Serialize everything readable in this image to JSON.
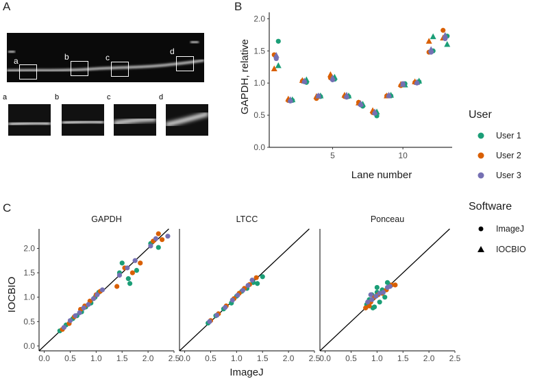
{
  "panels": {
    "a_letter": "A",
    "b_letter": "B",
    "c_letter": "C"
  },
  "blot": {
    "boxes": [
      "a",
      "b",
      "c",
      "d"
    ]
  },
  "colors": {
    "user1": "#1b9e77",
    "user2": "#d95f02",
    "user3": "#7570b3",
    "line": "#000000"
  },
  "chart_data": [
    {
      "type": "scatter",
      "panel": "B",
      "title": "",
      "xlabel": "Lane number",
      "ylabel": "GAPDH, relative",
      "xlim": [
        0.5,
        13.5
      ],
      "ylim": [
        0,
        2.1
      ],
      "xticks": [
        5,
        10
      ],
      "yticks": [
        0.0,
        0.5,
        1.0,
        1.5,
        2.0
      ],
      "ytick_labels": [
        "0.0",
        "0.5",
        "1.0",
        "1.5",
        "2.0"
      ],
      "grid": false,
      "series": [
        {
          "name": "User 1",
          "software": "ImageJ",
          "x": [
            1,
            2,
            3,
            4,
            5,
            6,
            7,
            8,
            9,
            10,
            11,
            12,
            13
          ],
          "y": [
            1.65,
            0.73,
            1.01,
            0.79,
            1.06,
            0.79,
            0.64,
            0.49,
            0.8,
            0.99,
            1.02,
            1.5,
            1.73
          ]
        },
        {
          "name": "User 1",
          "software": "IOCBIO",
          "x": [
            1,
            2,
            3,
            4,
            5,
            6,
            7,
            8,
            9,
            10,
            11,
            12,
            13
          ],
          "y": [
            1.27,
            0.74,
            1.05,
            0.8,
            1.09,
            0.8,
            0.67,
            0.55,
            0.81,
            0.97,
            1.03,
            1.72,
            1.6
          ]
        },
        {
          "name": "User 2",
          "software": "ImageJ",
          "x": [
            1,
            2,
            3,
            4,
            5,
            6,
            7,
            8,
            9,
            10,
            11,
            12,
            13
          ],
          "y": [
            1.44,
            0.73,
            1.03,
            0.76,
            1.08,
            0.79,
            0.7,
            0.54,
            0.8,
            0.96,
            1.01,
            1.48,
            1.82
          ]
        },
        {
          "name": "User 2",
          "software": "IOCBIO",
          "x": [
            1,
            2,
            3,
            4,
            5,
            6,
            7,
            8,
            9,
            10,
            11,
            12,
            13
          ],
          "y": [
            1.22,
            0.75,
            1.04,
            0.79,
            1.13,
            0.81,
            0.69,
            0.57,
            0.8,
            0.98,
            1.02,
            1.65,
            1.7
          ]
        },
        {
          "name": "User 3",
          "software": "ImageJ",
          "x": [
            1,
            2,
            3,
            4,
            5,
            6,
            7,
            8,
            9,
            10,
            11,
            12,
            13
          ],
          "y": [
            1.38,
            0.72,
            1.02,
            0.8,
            1.05,
            0.78,
            0.66,
            0.53,
            0.8,
            0.99,
            1.0,
            1.48,
            1.69
          ]
        },
        {
          "name": "User 3",
          "software": "IOCBIO",
          "x": [
            1,
            2,
            3,
            4,
            5,
            6,
            7,
            8,
            9,
            10,
            11,
            12,
            13
          ],
          "y": [
            1.43,
            0.74,
            1.03,
            0.8,
            1.08,
            0.81,
            0.68,
            0.55,
            0.81,
            0.98,
            1.01,
            1.52,
            1.74
          ]
        }
      ]
    },
    {
      "type": "scatter",
      "panel": "C",
      "title": "",
      "xlabel": "ImageJ",
      "ylabel": "IOCBIO",
      "xlim": [
        -0.1,
        2.5
      ],
      "ylim": [
        -0.1,
        2.4
      ],
      "xticks": [
        0.0,
        0.5,
        1.0,
        1.5,
        2.0,
        2.5
      ],
      "xtick_labels": [
        "0.0",
        "0.5",
        "1.0",
        "1.5",
        "2.0",
        "2.5"
      ],
      "yticks": [
        0.0,
        0.5,
        1.0,
        1.5,
        2.0
      ],
      "ytick_labels": [
        "0.0",
        "0.5",
        "1.0",
        "1.5",
        "2.0"
      ],
      "identity_line": true,
      "facets": [
        {
          "name": "GAPDH",
          "series": [
            {
              "name": "User 1",
              "points": [
                [
                  0.3,
                  0.31
                ],
                [
                  0.42,
                  0.43
                ],
                [
                  0.55,
                  0.56
                ],
                [
                  0.63,
                  0.62
                ],
                [
                  0.72,
                  0.7
                ],
                [
                  0.8,
                  0.8
                ],
                [
                  0.9,
                  0.88
                ],
                [
                  0.98,
                  1.0
                ],
                [
                  1.05,
                  1.1
                ],
                [
                  1.45,
                  1.5
                ],
                [
                  1.5,
                  1.7
                ],
                [
                  1.62,
                  1.38
                ],
                [
                  1.65,
                  1.28
                ],
                [
                  1.78,
                  1.55
                ],
                [
                  2.05,
                  2.1
                ],
                [
                  2.2,
                  2.02
                ]
              ]
            },
            {
              "name": "User 2",
              "points": [
                [
                  0.35,
                  0.34
                ],
                [
                  0.48,
                  0.46
                ],
                [
                  0.58,
                  0.6
                ],
                [
                  0.7,
                  0.75
                ],
                [
                  0.78,
                  0.82
                ],
                [
                  0.88,
                  0.92
                ],
                [
                  1.0,
                  1.05
                ],
                [
                  1.08,
                  1.12
                ],
                [
                  1.4,
                  1.22
                ],
                [
                  1.55,
                  1.6
                ],
                [
                  1.7,
                  1.5
                ],
                [
                  1.85,
                  1.7
                ],
                [
                  2.1,
                  2.15
                ],
                [
                  2.2,
                  2.3
                ],
                [
                  2.27,
                  2.18
                ]
              ]
            },
            {
              "name": "User 3",
              "points": [
                [
                  0.38,
                  0.38
                ],
                [
                  0.5,
                  0.52
                ],
                [
                  0.6,
                  0.62
                ],
                [
                  0.68,
                  0.68
                ],
                [
                  0.76,
                  0.78
                ],
                [
                  0.85,
                  0.85
                ],
                [
                  0.95,
                  0.97
                ],
                [
                  1.02,
                  1.05
                ],
                [
                  1.12,
                  1.15
                ],
                [
                  1.45,
                  1.45
                ],
                [
                  1.6,
                  1.6
                ],
                [
                  1.75,
                  1.75
                ],
                [
                  2.05,
                  2.05
                ],
                [
                  2.15,
                  2.2
                ],
                [
                  2.38,
                  2.25
                ]
              ]
            }
          ]
        },
        {
          "name": "LTCC",
          "series": [
            {
              "name": "User 1",
              "points": [
                [
                  0.45,
                  0.47
                ],
                [
                  0.6,
                  0.62
                ],
                [
                  0.75,
                  0.76
                ],
                [
                  0.9,
                  0.88
                ],
                [
                  1.0,
                  1.02
                ],
                [
                  1.1,
                  1.12
                ],
                [
                  1.2,
                  1.18
                ],
                [
                  1.32,
                  1.3
                ],
                [
                  1.4,
                  1.28
                ],
                [
                  1.5,
                  1.42
                ]
              ]
            },
            {
              "name": "User 2",
              "points": [
                [
                  0.5,
                  0.52
                ],
                [
                  0.65,
                  0.66
                ],
                [
                  0.8,
                  0.82
                ],
                [
                  0.95,
                  0.97
                ],
                [
                  1.05,
                  1.08
                ],
                [
                  1.15,
                  1.18
                ],
                [
                  1.25,
                  1.26
                ],
                [
                  1.38,
                  1.4
                ]
              ]
            },
            {
              "name": "User 3",
              "points": [
                [
                  0.48,
                  0.5
                ],
                [
                  0.62,
                  0.63
                ],
                [
                  0.78,
                  0.79
                ],
                [
                  0.92,
                  0.94
                ],
                [
                  1.02,
                  1.04
                ],
                [
                  1.12,
                  1.14
                ],
                [
                  1.22,
                  1.24
                ],
                [
                  1.3,
                  1.35
                ]
              ]
            }
          ]
        },
        {
          "name": "Ponceau",
          "series": [
            {
              "name": "User 1",
              "points": [
                [
                  0.8,
                  0.85
                ],
                [
                  0.85,
                  0.95
                ],
                [
                  0.9,
                  1.05
                ],
                [
                  0.95,
                  0.8
                ],
                [
                  1.0,
                  1.2
                ],
                [
                  1.05,
                  0.9
                ],
                [
                  1.1,
                  1.15
                ],
                [
                  1.15,
                  1.0
                ],
                [
                  1.2,
                  1.3
                ],
                [
                  1.25,
                  1.25
                ],
                [
                  0.92,
                  0.78
                ],
                [
                  1.0,
                  1.1
                ]
              ]
            },
            {
              "name": "User 2",
              "points": [
                [
                  0.78,
                  0.78
                ],
                [
                  0.88,
                  0.9
                ],
                [
                  0.95,
                  1.0
                ],
                [
                  1.02,
                  1.05
                ],
                [
                  1.1,
                  1.08
                ],
                [
                  1.18,
                  1.15
                ],
                [
                  1.28,
                  1.25
                ],
                [
                  1.35,
                  1.25
                ],
                [
                  0.85,
                  0.82
                ]
              ]
            },
            {
              "name": "User 3",
              "points": [
                [
                  0.82,
                  0.9
                ],
                [
                  0.9,
                  0.95
                ],
                [
                  0.98,
                  1.02
                ],
                [
                  1.05,
                  1.08
                ],
                [
                  1.12,
                  1.1
                ],
                [
                  1.2,
                  1.2
                ],
                [
                  1.25,
                  1.22
                ],
                [
                  0.88,
                  1.05
                ]
              ]
            }
          ]
        }
      ]
    }
  ],
  "legend": {
    "user_title": "User",
    "users": [
      "User 1",
      "User 2",
      "User 3"
    ],
    "software_title": "Software",
    "software": [
      "ImageJ",
      "IOCBIO"
    ]
  }
}
